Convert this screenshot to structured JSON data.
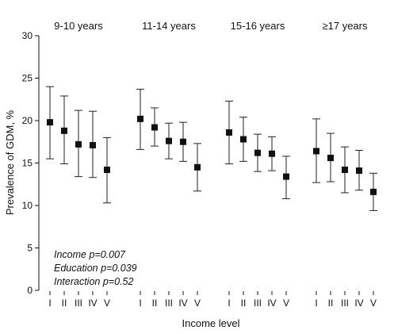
{
  "chart_data": {
    "type": "scatter",
    "ylabel": "Prevalence of GDM, %",
    "xlabel": "Income level",
    "ylim": [
      0,
      30
    ],
    "yticks": [
      0,
      5,
      10,
      15,
      20,
      25,
      30
    ],
    "grid": false,
    "categories": [
      "I",
      "II",
      "III",
      "IV",
      "V"
    ],
    "panels": [
      {
        "title": "9-10 years",
        "points": [
          {
            "category": "I",
            "value": 19.8,
            "lower": 15.5,
            "upper": 24.0
          },
          {
            "category": "II",
            "value": 18.8,
            "lower": 14.9,
            "upper": 22.9
          },
          {
            "category": "III",
            "value": 17.2,
            "lower": 13.4,
            "upper": 21.2
          },
          {
            "category": "IV",
            "value": 17.1,
            "lower": 13.3,
            "upper": 21.1
          },
          {
            "category": "V",
            "value": 14.2,
            "lower": 10.3,
            "upper": 18.0
          }
        ]
      },
      {
        "title": "11-14 years",
        "points": [
          {
            "category": "I",
            "value": 20.2,
            "lower": 16.6,
            "upper": 23.7
          },
          {
            "category": "II",
            "value": 19.2,
            "lower": 17.0,
            "upper": 21.5
          },
          {
            "category": "III",
            "value": 17.6,
            "lower": 15.5,
            "upper": 19.7
          },
          {
            "category": "IV",
            "value": 17.5,
            "lower": 15.2,
            "upper": 19.8
          },
          {
            "category": "V",
            "value": 14.5,
            "lower": 11.7,
            "upper": 17.3
          }
        ]
      },
      {
        "title": "15-16 years",
        "points": [
          {
            "category": "I",
            "value": 18.6,
            "lower": 14.9,
            "upper": 22.3
          },
          {
            "category": "II",
            "value": 17.8,
            "lower": 15.2,
            "upper": 20.4
          },
          {
            "category": "III",
            "value": 16.2,
            "lower": 14.0,
            "upper": 18.4
          },
          {
            "category": "IV",
            "value": 16.1,
            "lower": 14.1,
            "upper": 18.1
          },
          {
            "category": "V",
            "value": 13.4,
            "lower": 10.8,
            "upper": 15.8
          }
        ]
      },
      {
        "title": "≥17 years",
        "points": [
          {
            "category": "I",
            "value": 16.4,
            "lower": 12.7,
            "upper": 20.2
          },
          {
            "category": "II",
            "value": 15.6,
            "lower": 12.8,
            "upper": 18.5
          },
          {
            "category": "III",
            "value": 14.2,
            "lower": 11.5,
            "upper": 16.9
          },
          {
            "category": "IV",
            "value": 14.1,
            "lower": 11.8,
            "upper": 16.5
          },
          {
            "category": "V",
            "value": 11.6,
            "lower": 9.4,
            "upper": 13.8
          }
        ]
      }
    ],
    "annotations": [
      "Income p=0.007",
      "Education p=0.039",
      "Interaction p=0.52"
    ]
  }
}
